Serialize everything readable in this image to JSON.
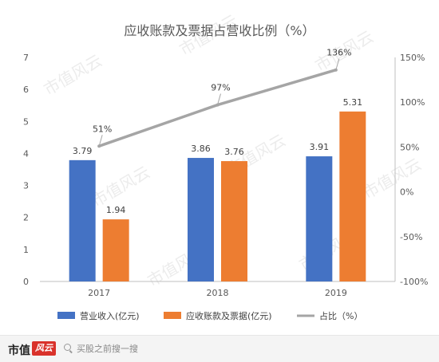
{
  "chart_data": {
    "type": "bar",
    "title": "应收账款及票据占营收比例（%）",
    "categories": [
      "2017",
      "2018",
      "2019"
    ],
    "series": [
      {
        "name": "营业收入(亿元)",
        "type": "bar",
        "axis": "left",
        "color": "#4472c4",
        "values": [
          3.79,
          3.86,
          3.91
        ],
        "labels": [
          "3.79",
          "3.86",
          "3.91"
        ]
      },
      {
        "name": "应收账款及票据(亿元)",
        "type": "bar",
        "axis": "left",
        "color": "#ed7d31",
        "values": [
          1.94,
          3.76,
          5.31
        ],
        "labels": [
          "1.94",
          "3.76",
          "5.31"
        ]
      },
      {
        "name": "占比（%）",
        "type": "line",
        "axis": "right",
        "color": "#a5a5a5",
        "values": [
          51,
          97,
          136
        ],
        "labels": [
          "51%",
          "97%",
          "136%"
        ]
      }
    ],
    "y_left": {
      "min": 0,
      "max": 7,
      "ticks": [
        "0",
        "1",
        "2",
        "3",
        "4",
        "5",
        "6",
        "7"
      ]
    },
    "y_right": {
      "min": -100,
      "max": 150,
      "ticks": [
        "-100%",
        "-50%",
        "0%",
        "50%",
        "100%",
        "150%"
      ]
    },
    "legend_position": "bottom",
    "grid": false
  },
  "watermark": "市值风云",
  "footer": {
    "brand": "市值",
    "brand_mark": "风云",
    "search_text": "买股之前搜一搜",
    "search_icon": "search-icon"
  }
}
